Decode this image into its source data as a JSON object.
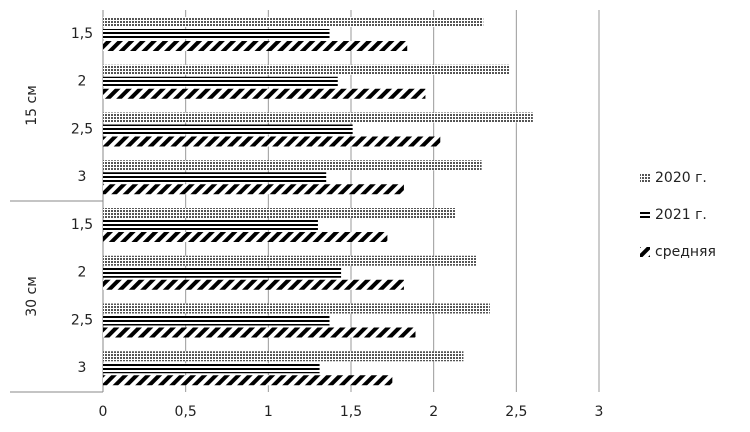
{
  "chart_data": {
    "type": "hbar",
    "group_labels": [
      "15 см",
      "30 см"
    ],
    "categories": [
      "1,5",
      "2",
      "2,5",
      "3",
      "1,5",
      "2",
      "2,5",
      "3"
    ],
    "series": [
      {
        "name": "2020 г.",
        "color": "#555555",
        "pattern": "dots",
        "values": [
          2.3,
          2.46,
          2.6,
          2.29,
          2.13,
          2.26,
          2.34,
          2.18
        ]
      },
      {
        "name": "2021 г.",
        "color": "#000000",
        "pattern": "horizontal",
        "values": [
          1.37,
          1.42,
          1.51,
          1.35,
          1.3,
          1.44,
          1.37,
          1.31
        ]
      },
      {
        "name": "средняя",
        "color": "#000000",
        "pattern": "diagonal",
        "values": [
          1.84,
          1.95,
          2.04,
          1.82,
          1.72,
          1.82,
          1.89,
          1.75
        ]
      }
    ],
    "xlim": [
      0,
      3
    ],
    "xticks": [
      0,
      {
        "value": 0.5,
        "label": "0,5"
      },
      1,
      {
        "value": 1.5,
        "label": "1,5"
      },
      2,
      {
        "value": 2.5,
        "label": "2,5"
      },
      3
    ],
    "grid": true,
    "legend": "right"
  }
}
